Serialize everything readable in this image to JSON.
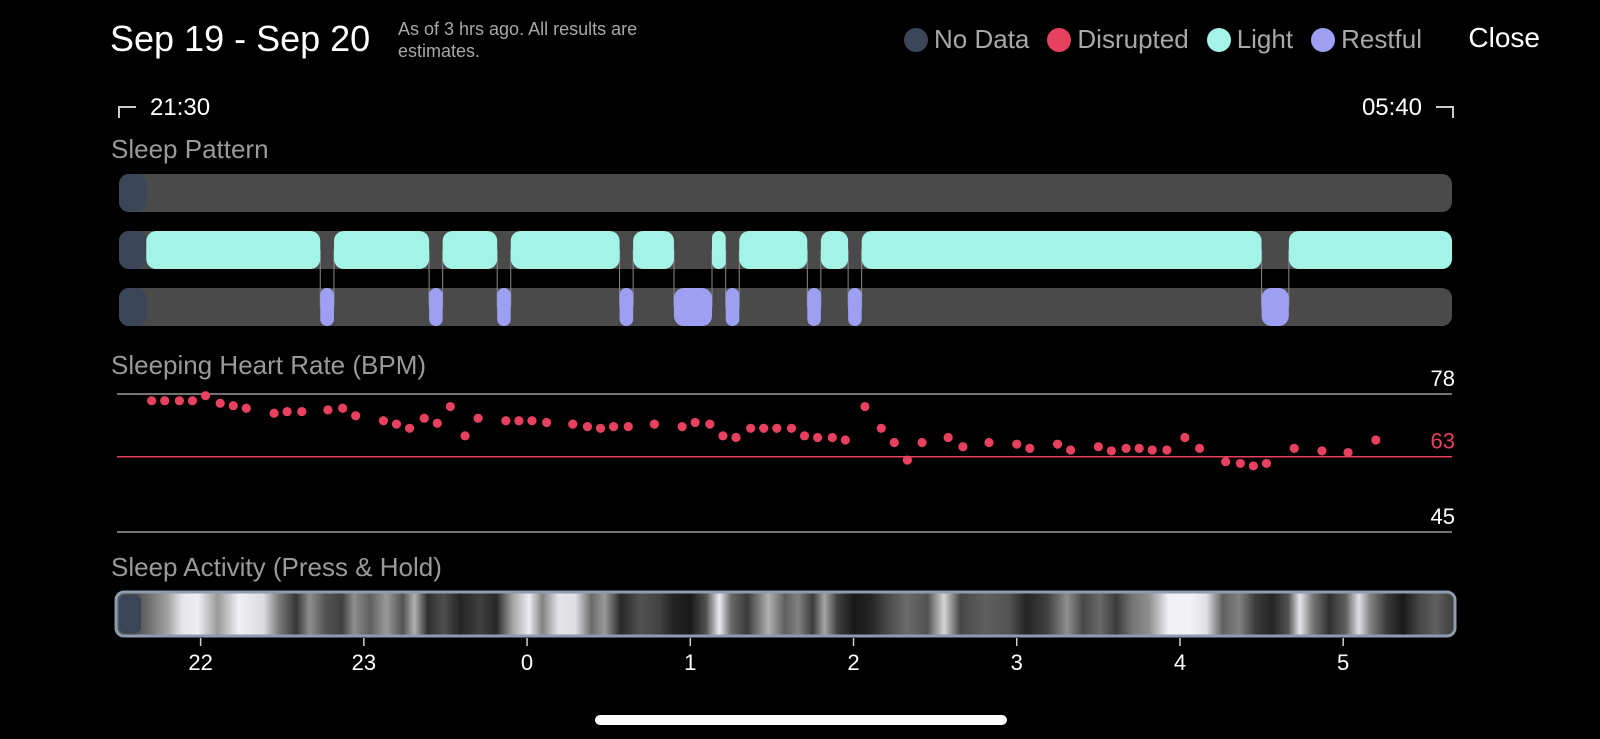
{
  "header": {
    "date_range": "Sep 19 - Sep 20",
    "note": "As of 3 hrs ago. All results are estimates.",
    "close_label": "Close"
  },
  "legend": [
    {
      "label": "No Data",
      "color": "#3a4657"
    },
    {
      "label": "Disrupted",
      "color": "#e8405f"
    },
    {
      "label": "Light",
      "color": "#a2f5e6"
    },
    {
      "label": "Restful",
      "color": "#9da0f2"
    }
  ],
  "time_range": {
    "start": "21:30",
    "end": "05:40"
  },
  "sections": {
    "sleep_pattern": "Sleep Pattern",
    "heart_rate": "Sleeping Heart Rate (BPM)",
    "activity": "Sleep Activity (Press & Hold)"
  },
  "chart_data": [
    {
      "type": "timeline",
      "name": "sleep-pattern",
      "time_unit": "hours",
      "x_range": [
        21.5,
        29.6667
      ],
      "rows": [
        "Disrupted",
        "Light",
        "Restful"
      ],
      "segments": [
        {
          "row": "Disrupted",
          "state": "No Data",
          "start": 21.5,
          "end": 21.667
        },
        {
          "row": "Light",
          "state": "No Data",
          "start": 21.5,
          "end": 21.667
        },
        {
          "row": "Restful",
          "state": "No Data",
          "start": 21.5,
          "end": 21.667
        },
        {
          "row": "Light",
          "state": "Light",
          "start": 21.667,
          "end": 22.733
        },
        {
          "row": "Light",
          "state": "Light",
          "start": 22.817,
          "end": 23.4
        },
        {
          "row": "Light",
          "state": "Light",
          "start": 23.483,
          "end": 23.817
        },
        {
          "row": "Light",
          "state": "Light",
          "start": 23.9,
          "end": 24.567
        },
        {
          "row": "Light",
          "state": "Light",
          "start": 24.65,
          "end": 24.9
        },
        {
          "row": "Light",
          "state": "Light",
          "start": 25.133,
          "end": 25.217
        },
        {
          "row": "Light",
          "state": "Light",
          "start": 25.3,
          "end": 25.717
        },
        {
          "row": "Light",
          "state": "Light",
          "start": 25.8,
          "end": 25.967
        },
        {
          "row": "Light",
          "state": "Light",
          "start": 26.05,
          "end": 28.5
        },
        {
          "row": "Light",
          "state": "Light",
          "start": 28.667,
          "end": 29.6667
        },
        {
          "row": "Restful",
          "state": "Restful",
          "start": 22.733,
          "end": 22.817
        },
        {
          "row": "Restful",
          "state": "Restful",
          "start": 23.4,
          "end": 23.483
        },
        {
          "row": "Restful",
          "state": "Restful",
          "start": 23.817,
          "end": 23.9
        },
        {
          "row": "Restful",
          "state": "Restful",
          "start": 24.567,
          "end": 24.65
        },
        {
          "row": "Restful",
          "state": "Restful",
          "start": 24.9,
          "end": 25.133
        },
        {
          "row": "Restful",
          "state": "Restful",
          "start": 25.217,
          "end": 25.3
        },
        {
          "row": "Restful",
          "state": "Restful",
          "start": 25.717,
          "end": 25.8
        },
        {
          "row": "Restful",
          "state": "Restful",
          "start": 25.967,
          "end": 26.05
        },
        {
          "row": "Restful",
          "state": "Restful",
          "start": 28.5,
          "end": 28.667
        }
      ]
    },
    {
      "type": "scatter",
      "name": "sleeping-heart-rate",
      "x_unit": "hours",
      "x_range": [
        21.5,
        29.6667
      ],
      "ylim": [
        45,
        78
      ],
      "reference_lines": [
        {
          "value": 78,
          "label": "78",
          "color": "#9a9a9a",
          "label_color": "#ffffff"
        },
        {
          "value": 63,
          "label": "63",
          "color": "#e8405f",
          "label_color": "#e8405f"
        },
        {
          "value": 45,
          "label": "45",
          "color": "#9a9a9a",
          "label_color": "#ffffff"
        }
      ],
      "point_color": "#e8405f",
      "points": [
        [
          21.7,
          76.4
        ],
        [
          21.78,
          76.4
        ],
        [
          21.87,
          76.4
        ],
        [
          21.95,
          76.4
        ],
        [
          22.03,
          77.6
        ],
        [
          22.12,
          75.8
        ],
        [
          22.2,
          75.2
        ],
        [
          22.28,
          74.6
        ],
        [
          22.45,
          73.4
        ],
        [
          22.53,
          73.8
        ],
        [
          22.62,
          73.8
        ],
        [
          22.78,
          74.2
        ],
        [
          22.87,
          74.6
        ],
        [
          22.95,
          72.8
        ],
        [
          23.12,
          71.6
        ],
        [
          23.2,
          70.8
        ],
        [
          23.28,
          69.8
        ],
        [
          23.37,
          72.2
        ],
        [
          23.45,
          71.0
        ],
        [
          23.53,
          75.0
        ],
        [
          23.62,
          68.0
        ],
        [
          23.7,
          72.2
        ],
        [
          23.87,
          71.6
        ],
        [
          23.95,
          71.6
        ],
        [
          24.03,
          71.6
        ],
        [
          24.12,
          71.2
        ],
        [
          24.28,
          70.8
        ],
        [
          24.37,
          70.2
        ],
        [
          24.45,
          69.8
        ],
        [
          24.53,
          70.2
        ],
        [
          24.62,
          70.2
        ],
        [
          24.78,
          70.8
        ],
        [
          24.95,
          70.2
        ],
        [
          25.03,
          71.2
        ],
        [
          25.12,
          70.8
        ],
        [
          25.2,
          68.0
        ],
        [
          25.28,
          67.6
        ],
        [
          25.37,
          69.8
        ],
        [
          25.45,
          69.8
        ],
        [
          25.53,
          69.8
        ],
        [
          25.62,
          69.8
        ],
        [
          25.7,
          68.0
        ],
        [
          25.78,
          67.6
        ],
        [
          25.87,
          67.6
        ],
        [
          25.95,
          67.0
        ],
        [
          26.07,
          75.0
        ],
        [
          26.17,
          69.8
        ],
        [
          26.25,
          66.4
        ],
        [
          26.33,
          62.2
        ],
        [
          26.42,
          66.4
        ],
        [
          26.58,
          67.6
        ],
        [
          26.67,
          65.4
        ],
        [
          26.83,
          66.4
        ],
        [
          27.0,
          66.0
        ],
        [
          27.08,
          65.0
        ],
        [
          27.25,
          66.0
        ],
        [
          27.33,
          64.6
        ],
        [
          27.5,
          65.4
        ],
        [
          27.58,
          64.4
        ],
        [
          27.67,
          65.0
        ],
        [
          27.75,
          65.0
        ],
        [
          27.83,
          64.6
        ],
        [
          27.92,
          64.6
        ],
        [
          28.03,
          67.6
        ],
        [
          28.12,
          65.0
        ],
        [
          28.28,
          61.8
        ],
        [
          28.37,
          61.4
        ],
        [
          28.45,
          60.8
        ],
        [
          28.53,
          61.4
        ],
        [
          28.7,
          65.0
        ],
        [
          28.87,
          64.4
        ],
        [
          29.03,
          64.0
        ],
        [
          29.2,
          67.0
        ]
      ]
    },
    {
      "type": "heatmap",
      "name": "sleep-activity",
      "x_range": [
        21.5,
        29.6667
      ],
      "x_ticks": [
        22,
        23,
        0,
        1,
        2,
        3,
        4,
        5
      ],
      "x_tick_positions": [
        22,
        23,
        24,
        25,
        26,
        27,
        28,
        29
      ],
      "scale": "grayscale 0-1",
      "intensity": [
        [
          21.5,
          0.35
        ],
        [
          21.6,
          0.25
        ],
        [
          21.7,
          0.42
        ],
        [
          21.82,
          0.65
        ],
        [
          21.9,
          0.92
        ],
        [
          22.0,
          0.96
        ],
        [
          22.12,
          0.6
        ],
        [
          22.25,
          0.97
        ],
        [
          22.4,
          0.88
        ],
        [
          22.5,
          0.45
        ],
        [
          22.6,
          0.18
        ],
        [
          22.68,
          0.55
        ],
        [
          22.78,
          0.3
        ],
        [
          22.88,
          0.22
        ],
        [
          22.95,
          0.55
        ],
        [
          23.05,
          0.35
        ],
        [
          23.15,
          0.6
        ],
        [
          23.25,
          0.3
        ],
        [
          23.32,
          0.7
        ],
        [
          23.4,
          0.15
        ],
        [
          23.5,
          0.28
        ],
        [
          23.6,
          0.1
        ],
        [
          23.72,
          0.22
        ],
        [
          23.82,
          0.12
        ],
        [
          23.92,
          0.65
        ],
        [
          24.02,
          0.95
        ],
        [
          24.1,
          0.5
        ],
        [
          24.2,
          0.92
        ],
        [
          24.3,
          0.9
        ],
        [
          24.4,
          0.4
        ],
        [
          24.48,
          0.6
        ],
        [
          24.58,
          0.12
        ],
        [
          24.7,
          0.3
        ],
        [
          24.82,
          0.22
        ],
        [
          24.9,
          0.1
        ],
        [
          25.0,
          0.05
        ],
        [
          25.1,
          0.3
        ],
        [
          25.18,
          0.95
        ],
        [
          25.25,
          0.4
        ],
        [
          25.35,
          0.2
        ],
        [
          25.48,
          0.7
        ],
        [
          25.58,
          0.35
        ],
        [
          25.66,
          0.5
        ],
        [
          25.75,
          0.2
        ],
        [
          25.82,
          0.65
        ],
        [
          25.9,
          0.22
        ],
        [
          26.0,
          0.05
        ],
        [
          26.1,
          0.1
        ],
        [
          26.2,
          0.25
        ],
        [
          26.32,
          0.4
        ],
        [
          26.45,
          0.3
        ],
        [
          26.55,
          0.85
        ],
        [
          26.65,
          0.25
        ],
        [
          26.8,
          0.35
        ],
        [
          26.95,
          0.3
        ],
        [
          27.05,
          0.1
        ],
        [
          27.18,
          0.22
        ],
        [
          27.3,
          0.55
        ],
        [
          27.4,
          0.25
        ],
        [
          27.5,
          0.4
        ],
        [
          27.6,
          0.2
        ],
        [
          27.7,
          0.45
        ],
        [
          27.8,
          0.55
        ],
        [
          27.92,
          0.97
        ],
        [
          28.05,
          0.98
        ],
        [
          28.15,
          0.9
        ],
        [
          28.25,
          0.35
        ],
        [
          28.35,
          0.5
        ],
        [
          28.45,
          0.2
        ],
        [
          28.55,
          0.1
        ],
        [
          28.65,
          0.3
        ],
        [
          28.72,
          0.92
        ],
        [
          28.8,
          0.45
        ],
        [
          28.9,
          0.15
        ],
        [
          29.0,
          0.35
        ],
        [
          29.08,
          0.9
        ],
        [
          29.15,
          0.5
        ],
        [
          29.25,
          0.2
        ],
        [
          29.35,
          0.05
        ],
        [
          29.45,
          0.25
        ],
        [
          29.55,
          0.35
        ],
        [
          29.6667,
          0.2
        ]
      ]
    }
  ]
}
